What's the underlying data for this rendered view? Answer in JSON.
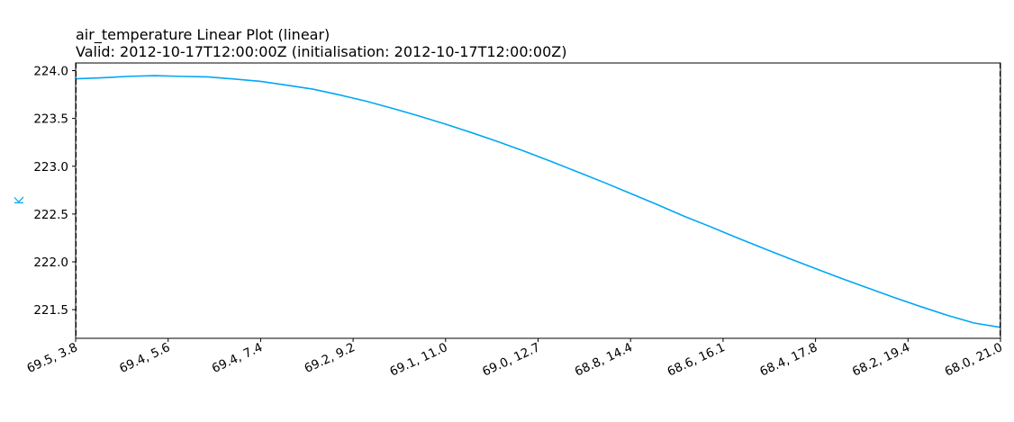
{
  "chart_data": {
    "type": "line",
    "title": "air_temperature Linear Plot (linear)",
    "subtitle": "Valid: 2012-10-17T12:00:00Z (initialisation: 2012-10-17T12:00:00Z)",
    "xlabel": "",
    "ylabel": "K",
    "ylim": [
      221.2,
      224.08
    ],
    "y_ticks": [
      "221.5",
      "222.0",
      "222.5",
      "223.0",
      "223.5",
      "224.0"
    ],
    "x_ticks": [
      "69.5, 3.8",
      "69.4, 5.6",
      "69.4, 7.4",
      "69.2, 9.2",
      "69.1, 11.0",
      "69.0, 12.7",
      "68.8, 14.4",
      "68.6, 16.1",
      "68.4, 17.8",
      "68.2, 19.4",
      "68.0, 21.0"
    ],
    "grid": false,
    "line_color": "#00a7f5",
    "series": [
      {
        "values": [
          223.915,
          223.925,
          223.94,
          223.948,
          223.94,
          223.935,
          223.912,
          223.888,
          223.848,
          223.805,
          223.745,
          223.68,
          223.605,
          223.525,
          223.44,
          223.35,
          223.255,
          223.155,
          223.05,
          222.94,
          222.83,
          222.715,
          222.6,
          222.48,
          222.37,
          222.255,
          222.145,
          222.035,
          221.93,
          221.825,
          221.725,
          221.625,
          221.53,
          221.44,
          221.36,
          221.315
        ]
      }
    ]
  }
}
